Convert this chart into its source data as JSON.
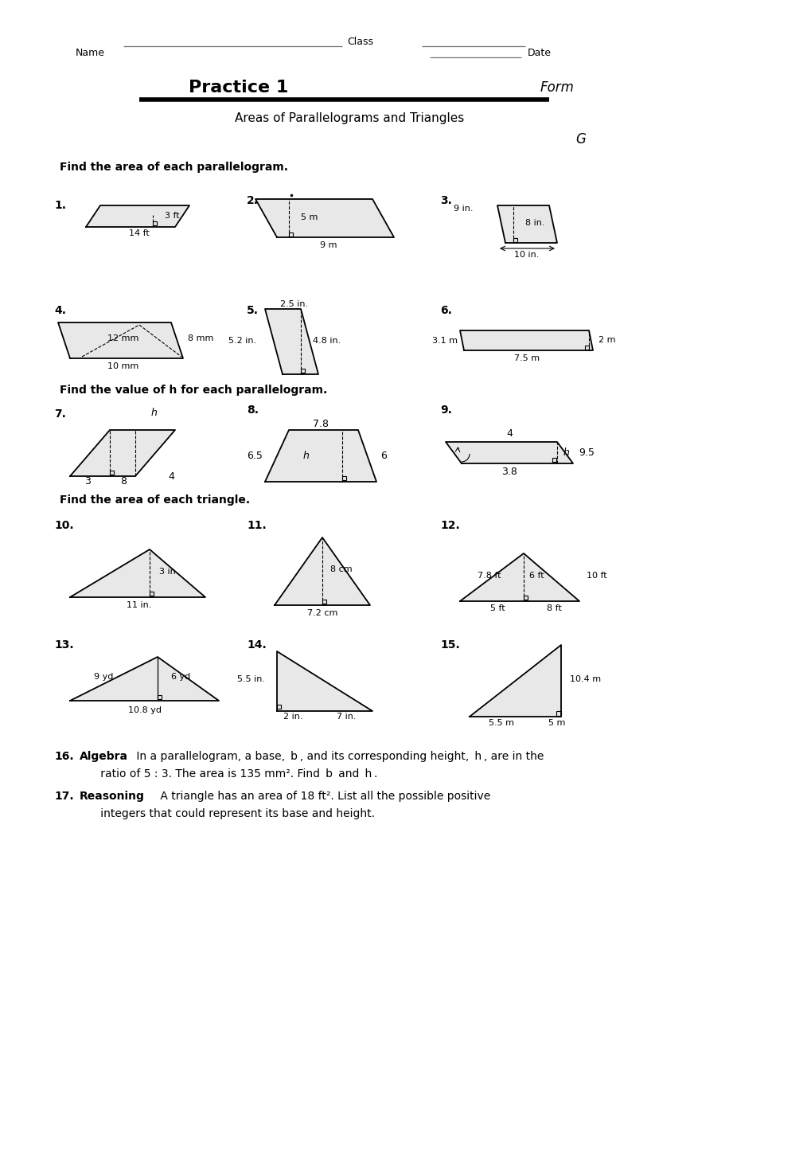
{
  "title": "Practice 1",
  "subtitle": "Areas of Parallelograms and Triangles",
  "form_label": "Form",
  "g_label": "G",
  "section1": "Find the area of each parallelogram.",
  "section2": "Find the value of h for each parallelogram.",
  "section3": "Find the area of each triangle.",
  "bg_color": "#ffffff"
}
